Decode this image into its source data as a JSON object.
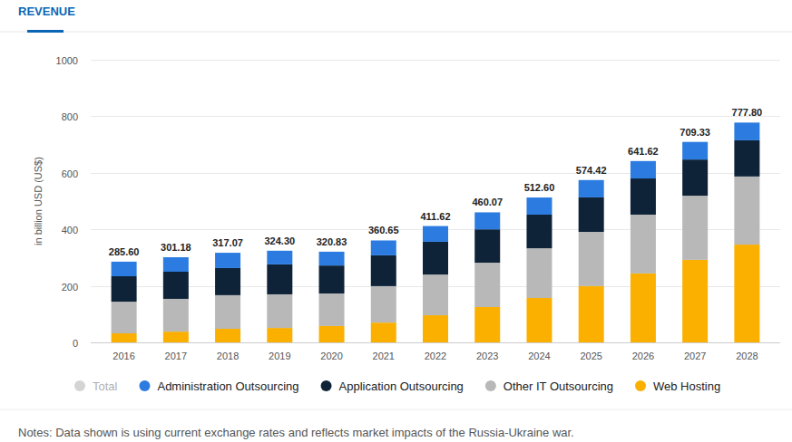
{
  "chart_data": {
    "type": "bar",
    "title": "REVENUE",
    "y_label": "in billion USD (US$)",
    "note": "Notes: Data shown is using current exchange rates and reflects market impacts of the Russia-Ukraine war.",
    "categories": [
      "2016",
      "2017",
      "2018",
      "2019",
      "2020",
      "2021",
      "2022",
      "2023",
      "2024",
      "2025",
      "2026",
      "2027",
      "2028"
    ],
    "stacked": true,
    "grid": true,
    "legend": "bottom",
    "data_labels": true,
    "ylim": [
      0,
      1000
    ],
    "yticks": [
      0,
      200,
      400,
      600,
      800,
      1000
    ],
    "total": {
      "name": "Total",
      "color": "#d4d4d4",
      "values": [
        285.6,
        301.18,
        317.07,
        324.3,
        320.83,
        360.65,
        411.62,
        460.07,
        512.6,
        574.42,
        641.62,
        709.33,
        777.8
      ],
      "value_labels": [
        "285.60",
        "301.18",
        "317.07",
        "324.30",
        "320.83",
        "360.65",
        "411.62",
        "460.07",
        "512.60",
        "574.42",
        "641.62",
        "709.33",
        "777.80"
      ]
    },
    "series": [
      {
        "name": "Administration Outsourcing",
        "color": "#2b7be0",
        "values": [
          51.6,
          51.18,
          54.07,
          48.3,
          48.83,
          52.65,
          55.62,
          60.07,
          60.6,
          61.42,
          61.62,
          62.33,
          62.8
        ]
      },
      {
        "name": "Application Outsourcing",
        "color": "#0e2338",
        "values": [
          90,
          96,
          96,
          106,
          99,
          109,
          116,
          118,
          119,
          122,
          128,
          128,
          128
        ]
      },
      {
        "name": "Other IT Outsourcing",
        "color": "#b8b8b8",
        "values": [
          112,
          116,
          119,
          119,
          115,
          129,
          144,
          157,
          176,
          192,
          208,
          227,
          241
        ]
      },
      {
        "name": "Web Hosting",
        "color": "#fbb000",
        "values": [
          32,
          38,
          48,
          51,
          58,
          70,
          96,
          125,
          157,
          199,
          244,
          292,
          346
        ]
      }
    ]
  }
}
